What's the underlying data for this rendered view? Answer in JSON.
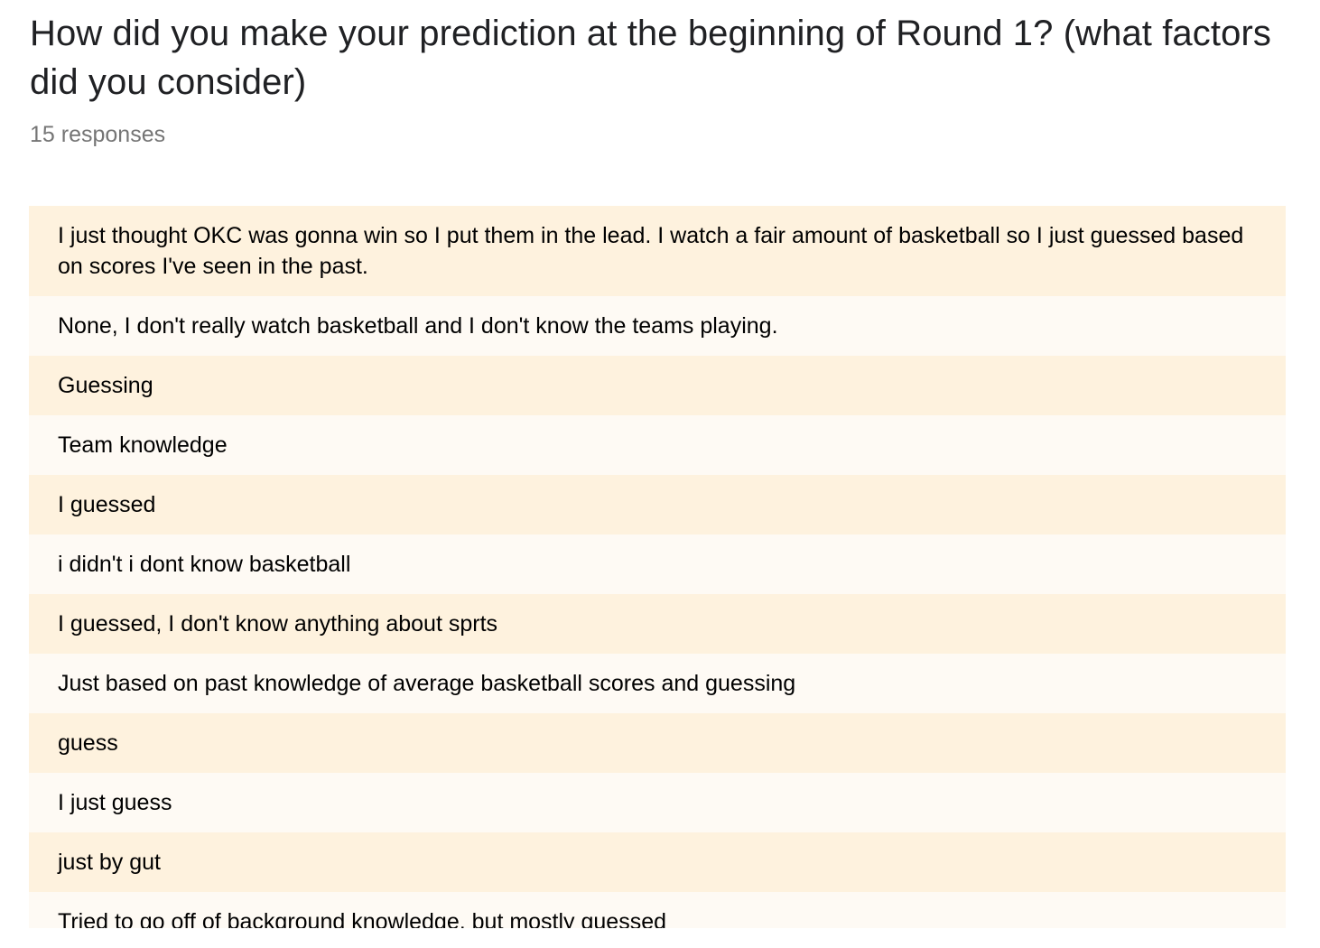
{
  "question": {
    "title": "How did you make your prediction at the beginning of Round 1? (what factors did you consider)",
    "response_count": "15 responses"
  },
  "responses": [
    "I just thought OKC was gonna win so I put them in the lead. I watch a fair amount of basketball so I just guessed based on scores I've seen in the past.",
    "None, I don't really watch basketball and I don't know the teams playing.",
    "Guessing",
    "Team knowledge",
    "I guessed",
    "i didn't i dont know basketball",
    "I guessed, I don't know anything about sprts",
    "Just based on past knowledge of average basketball scores and guessing",
    "guess",
    "I just guess",
    "just by gut",
    "Tried to go off of background knowledge, but mostly guessed"
  ],
  "colors": {
    "row_dark": "#fef2de",
    "row_light": "#fefaf4",
    "count_text": "#757575"
  }
}
